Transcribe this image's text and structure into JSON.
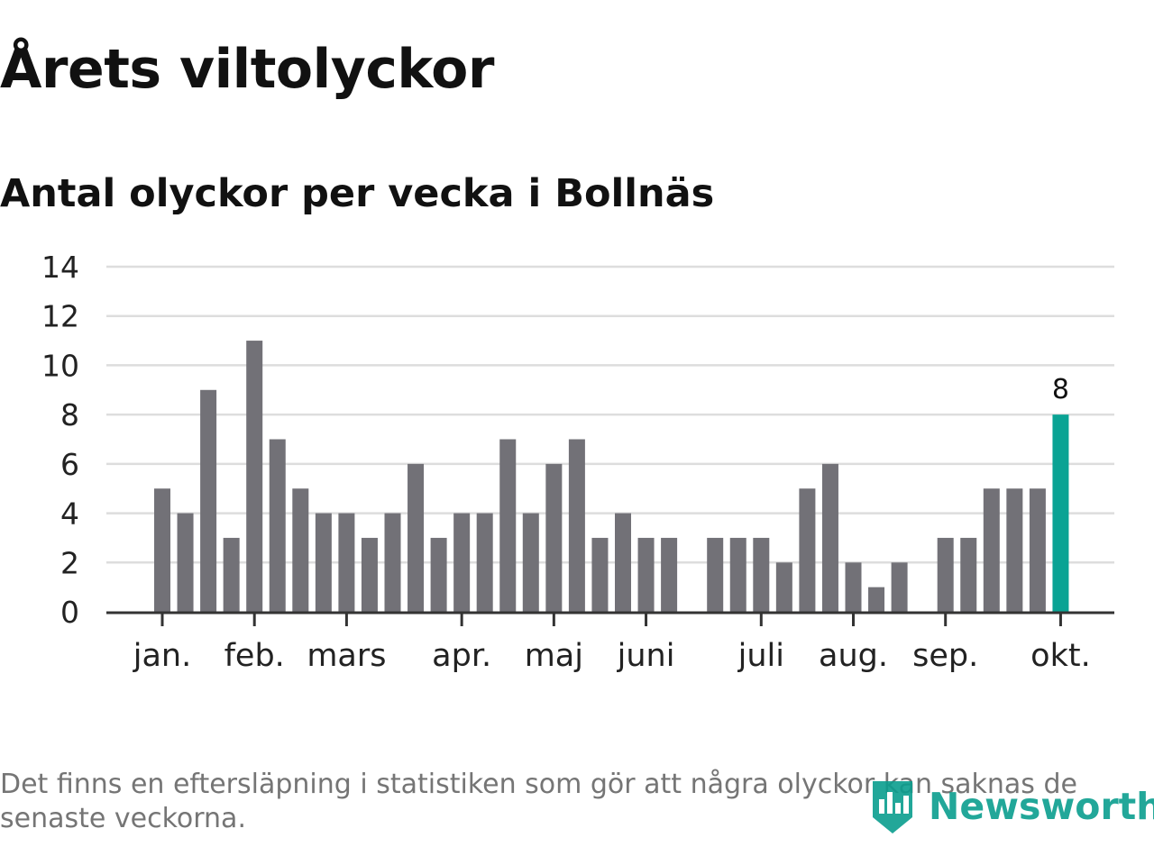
{
  "page": {
    "title": "Årets viltolyckor",
    "subtitle": "Antal olyckor per vecka i Bollnäs",
    "footnote": "Det finns en eftersläpning i statistiken som gör att några olyckor kan saknas de senaste veckorna.",
    "logo_text": "Newsworthy",
    "logo_icon": "bar-chart-shield-icon"
  },
  "colors": {
    "bar": "#727177",
    "highlight": "#0aa394",
    "grid": "#dddddd",
    "axis": "#333333",
    "brand": "#0b9e8e"
  },
  "chart_data": {
    "type": "bar",
    "title": "Årets viltolyckor",
    "subtitle": "Antal olyckor per vecka i Bollnäs",
    "x": [
      1,
      2,
      3,
      4,
      5,
      6,
      7,
      8,
      9,
      10,
      11,
      12,
      13,
      14,
      15,
      16,
      17,
      18,
      19,
      20,
      21,
      22,
      23,
      24,
      25,
      26,
      27,
      28,
      29,
      30,
      31,
      32,
      33,
      34,
      35,
      36,
      37,
      38,
      39,
      40,
      41
    ],
    "values": [
      5,
      4,
      9,
      3,
      11,
      7,
      5,
      4,
      4,
      3,
      4,
      6,
      3,
      4,
      4,
      7,
      4,
      6,
      7,
      3,
      4,
      3,
      3,
      null,
      3,
      3,
      3,
      2,
      5,
      6,
      2,
      1,
      2,
      null,
      3,
      3,
      5,
      5,
      5,
      8,
      null
    ],
    "highlight_index": 39,
    "data_labels": [
      {
        "index": 39,
        "text": "8"
      }
    ],
    "y_ticks": [
      "0",
      "2",
      "4",
      "6",
      "8",
      "10",
      "12",
      "14"
    ],
    "ylim": [
      0,
      14
    ],
    "month_ticks": [
      {
        "label": "jan.",
        "position": 1
      },
      {
        "label": "feb.",
        "position": 5
      },
      {
        "label": "mars",
        "position": 9
      },
      {
        "label": "apr.",
        "position": 14
      },
      {
        "label": "maj",
        "position": 18
      },
      {
        "label": "juni",
        "position": 22
      },
      {
        "label": "juli",
        "position": 27
      },
      {
        "label": "aug.",
        "position": 31
      },
      {
        "label": "sep.",
        "position": 35
      },
      {
        "label": "okt.",
        "position": 40
      }
    ],
    "grid": true,
    "legend": "none",
    "xlabel": "",
    "ylabel": ""
  }
}
